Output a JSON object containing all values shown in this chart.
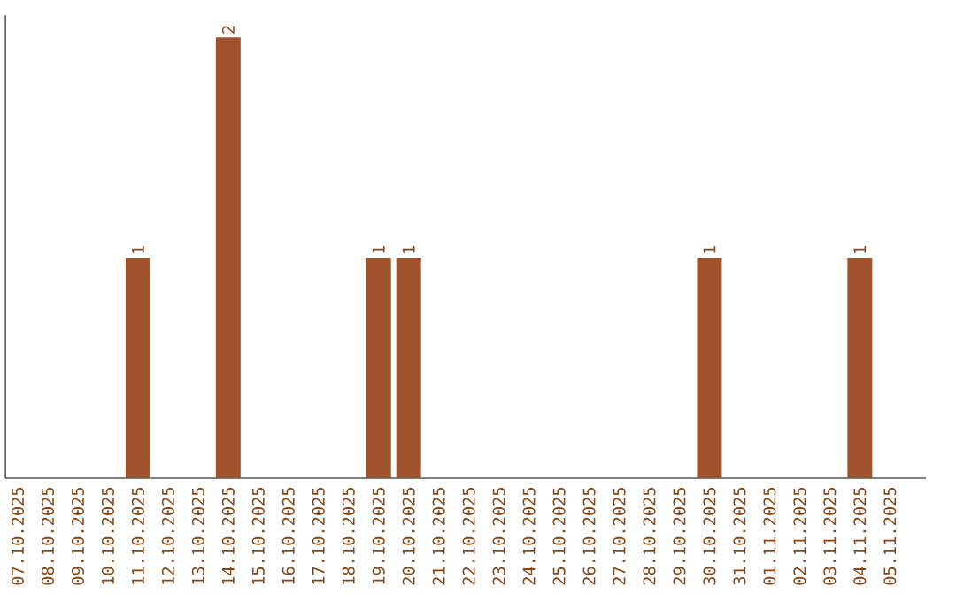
{
  "chart_data": {
    "type": "bar",
    "categories": [
      "07.10.2025",
      "08.10.2025",
      "09.10.2025",
      "10.10.2025",
      "11.10.2025",
      "12.10.2025",
      "13.10.2025",
      "14.10.2025",
      "15.10.2025",
      "16.10.2025",
      "17.10.2025",
      "18.10.2025",
      "19.10.2025",
      "20.10.2025",
      "21.10.2025",
      "22.10.2025",
      "23.10.2025",
      "24.10.2025",
      "25.10.2025",
      "26.10.2025",
      "27.10.2025",
      "28.10.2025",
      "29.10.2025",
      "30.10.2025",
      "31.10.2025",
      "01.11.2025",
      "02.11.2025",
      "03.11.2025",
      "04.11.2025",
      "05.11.2025"
    ],
    "values": [
      0,
      0,
      0,
      0,
      1,
      0,
      0,
      2,
      0,
      0,
      0,
      0,
      1,
      1,
      0,
      0,
      0,
      0,
      0,
      0,
      0,
      0,
      0,
      1,
      0,
      0,
      0,
      0,
      1,
      0
    ],
    "value_labels": [
      null,
      null,
      null,
      null,
      "1",
      null,
      null,
      "2",
      null,
      null,
      null,
      null,
      "1",
      "1",
      null,
      null,
      null,
      null,
      null,
      null,
      null,
      null,
      null,
      "1",
      null,
      null,
      null,
      null,
      "1",
      null
    ],
    "color": "#a0522d",
    "tick_labels": "x"
  }
}
